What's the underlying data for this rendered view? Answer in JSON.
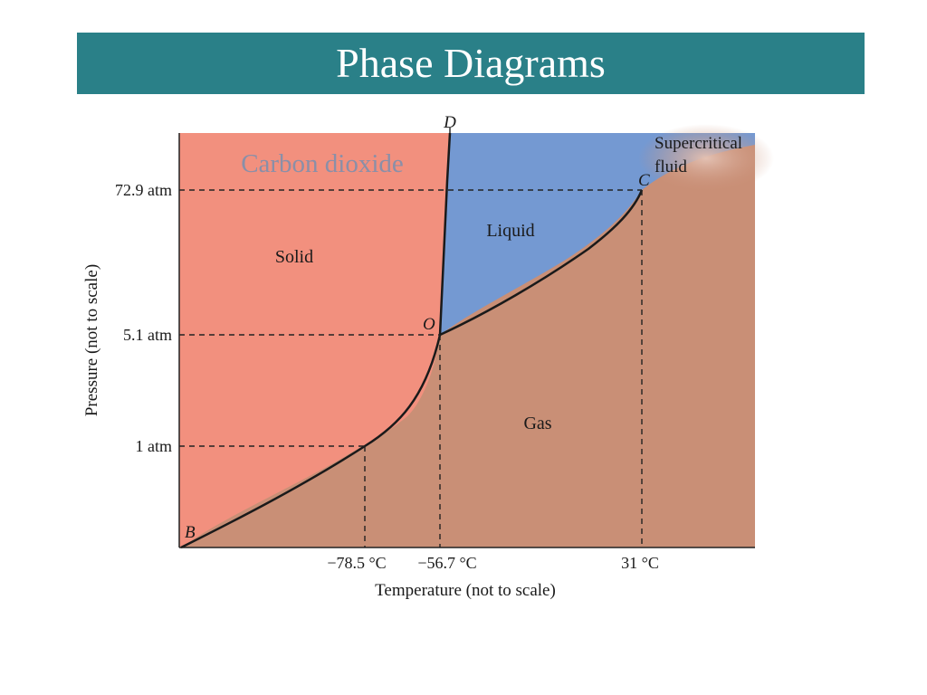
{
  "slide": {
    "title": "Phase Diagrams"
  },
  "diagram": {
    "substance_label": "Carbon dioxide",
    "regions": {
      "solid": "Solid",
      "liquid": "Liquid",
      "gas": "Gas",
      "supercritical_line1": "Supercritical",
      "supercritical_line2": "fluid"
    },
    "points": {
      "B": "B",
      "O": "O",
      "C": "C",
      "D": "D"
    },
    "y_ticks": [
      "72.9 atm",
      "5.1 atm",
      "1 atm"
    ],
    "x_ticks": [
      "−78.5 °C",
      "−56.7 °C",
      "31 °C"
    ],
    "xlabel": "Temperature (not to scale)",
    "ylabel": "Pressure (not to scale)",
    "colors": {
      "title_bar": "#2a8088",
      "solid": "#f2907e",
      "liquid": "#7499d2",
      "gas": "#c98f76",
      "substance_label": "#8a8fa8"
    }
  }
}
